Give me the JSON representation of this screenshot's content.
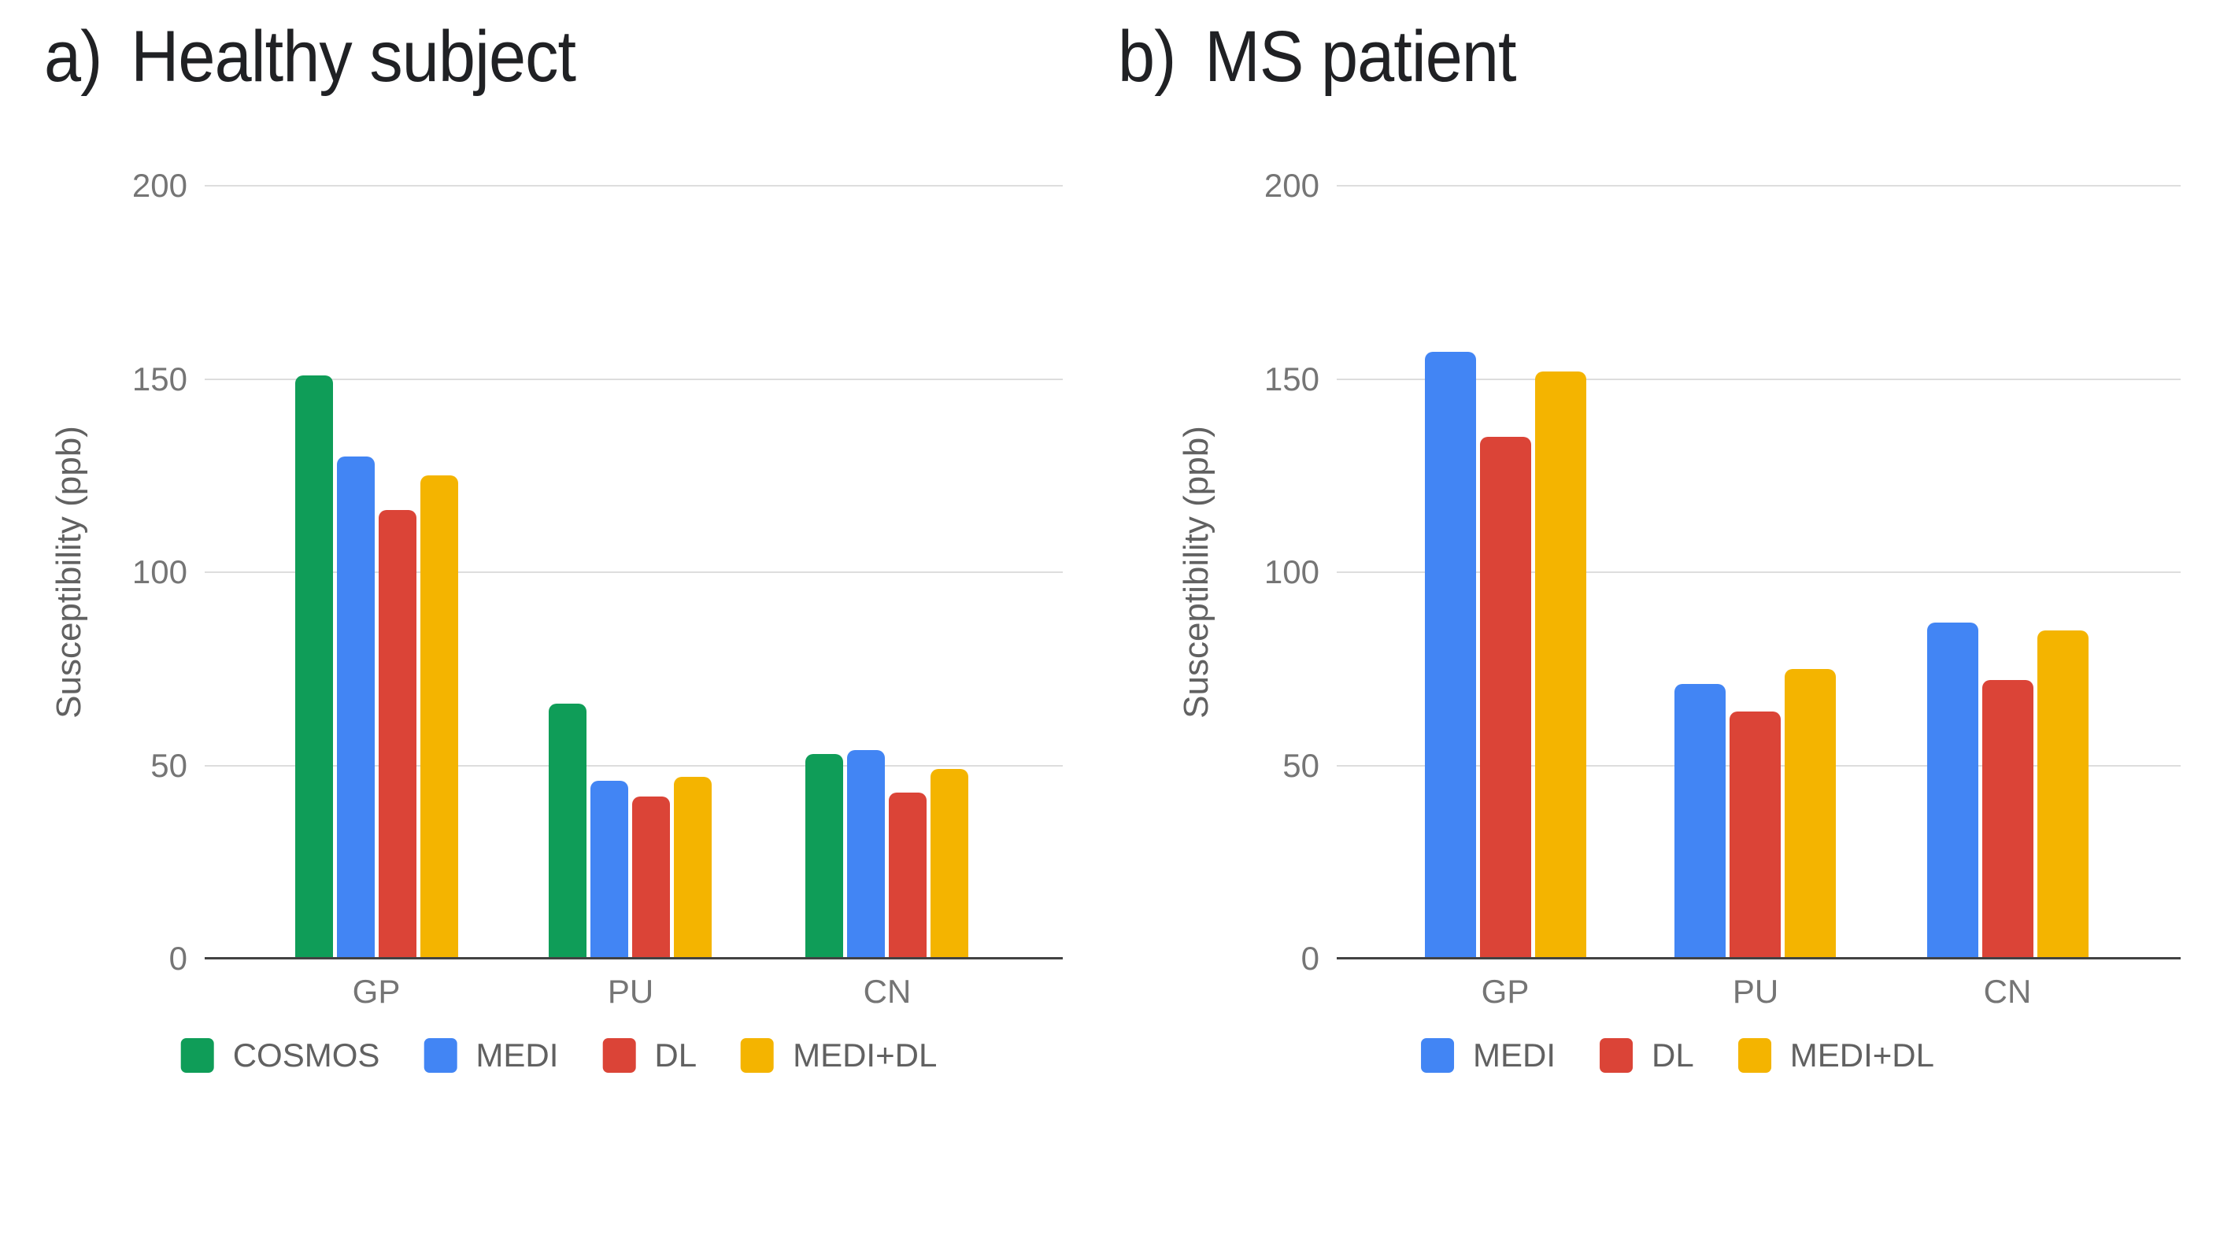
{
  "page": {
    "background": "#ffffff"
  },
  "panels": [
    {
      "prefix": "a)",
      "title": "Healthy subject"
    },
    {
      "prefix": "b)",
      "title": "MS patient"
    }
  ],
  "chart_data": [
    {
      "type": "bar",
      "title": "Healthy subject",
      "categories": [
        "GP",
        "PU",
        "CN"
      ],
      "series": [
        {
          "name": "COSMOS",
          "color": "#0F9D58",
          "values": [
            151,
            66,
            53
          ]
        },
        {
          "name": "MEDI",
          "color": "#4285F4",
          "values": [
            130,
            46,
            54
          ]
        },
        {
          "name": "DL",
          "color": "#DB4437",
          "values": [
            116,
            42,
            43
          ]
        },
        {
          "name": "MEDI+DL",
          "color": "#F4B400",
          "values": [
            125,
            47,
            49
          ]
        }
      ],
      "xlabel": "",
      "ylabel": "Susceptibility (ppb)",
      "ylim": [
        0,
        200
      ],
      "yticks": [
        0,
        50,
        100,
        150,
        200
      ],
      "grid": true,
      "legend_position": "bottom"
    },
    {
      "type": "bar",
      "title": "MS patient",
      "categories": [
        "GP",
        "PU",
        "CN"
      ],
      "series": [
        {
          "name": "MEDI",
          "color": "#4285F4",
          "values": [
            157,
            71,
            87
          ]
        },
        {
          "name": "DL",
          "color": "#DB4437",
          "values": [
            135,
            64,
            72
          ]
        },
        {
          "name": "MEDI+DL",
          "color": "#F4B400",
          "values": [
            152,
            75,
            85
          ]
        }
      ],
      "xlabel": "",
      "ylabel": "Susceptibility (ppb)",
      "ylim": [
        0,
        200
      ],
      "yticks": [
        0,
        50,
        100,
        150,
        200
      ],
      "grid": true,
      "legend_position": "bottom"
    }
  ],
  "colors": {
    "title_text": "#202124",
    "tick_label": "#757575",
    "category_label": "#757575",
    "axis_title": "#616161",
    "legend_label": "#616161",
    "gridline": "#dddddd",
    "axis_line": "#424242"
  }
}
